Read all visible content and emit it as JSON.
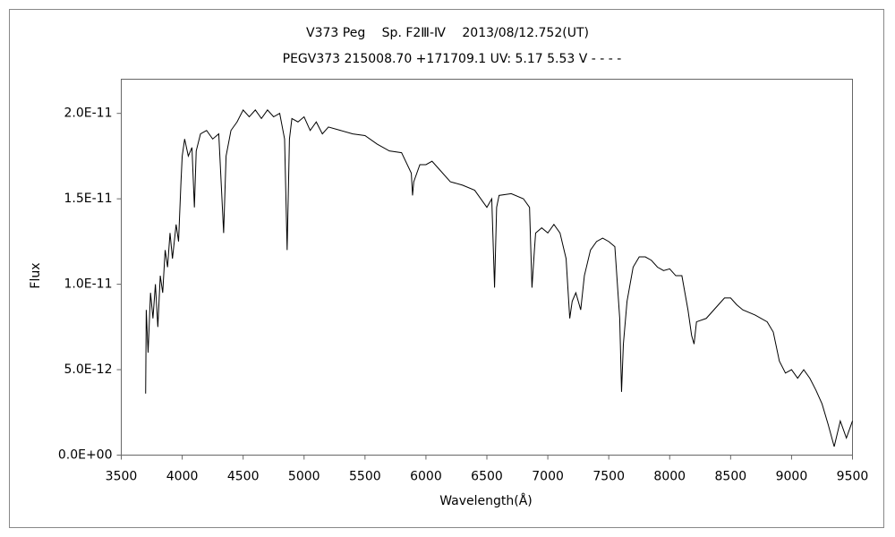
{
  "chart_data": {
    "type": "line",
    "title": "V373 Peg　 Sp. F2Ⅲ-Ⅳ　 2013/08/12.752(UT)",
    "subtitle": "PEGV373 215008.70 +171709.1 UV: 5.17 5.53 V - - - -",
    "x_label": "Wavelength(Å)",
    "y_label": "Flux",
    "color": "#000000",
    "xlim": [
      3500,
      9500
    ],
    "xticks": [
      3500,
      4000,
      4500,
      5000,
      5500,
      6000,
      6500,
      7000,
      7500,
      8000,
      8500,
      9000,
      9500
    ],
    "ylim": [
      0,
      2.2e-11
    ],
    "yticks": [
      {
        "value": 0,
        "label": "0.0E+00"
      },
      {
        "value": 5e-12,
        "label": "5.0E-12"
      },
      {
        "value": 1e-11,
        "label": "1.0E-11"
      },
      {
        "value": 1.5e-11,
        "label": "1.5E-11"
      },
      {
        "value": 2e-11,
        "label": "2.0E-11"
      }
    ],
    "grid": false,
    "x": [
      3700,
      3705,
      3720,
      3740,
      3760,
      3780,
      3800,
      3820,
      3840,
      3860,
      3880,
      3900,
      3920,
      3950,
      3970,
      3990,
      4000,
      4020,
      4050,
      4080,
      4100,
      4115,
      4150,
      4200,
      4250,
      4300,
      4340,
      4360,
      4400,
      4450,
      4500,
      4550,
      4600,
      4650,
      4700,
      4750,
      4800,
      4840,
      4861,
      4880,
      4900,
      4950,
      5000,
      5050,
      5100,
      5150,
      5200,
      5300,
      5400,
      5500,
      5600,
      5700,
      5800,
      5880,
      5890,
      5900,
      5950,
      6000,
      6050,
      6100,
      6200,
      6300,
      6400,
      6500,
      6540,
      6563,
      6580,
      6600,
      6700,
      6800,
      6850,
      6870,
      6890,
      6900,
      6950,
      7000,
      7050,
      7100,
      7150,
      7180,
      7200,
      7230,
      7270,
      7300,
      7350,
      7400,
      7450,
      7500,
      7550,
      7590,
      7605,
      7620,
      7650,
      7700,
      7750,
      7800,
      7850,
      7900,
      7950,
      8000,
      8050,
      8100,
      8150,
      8180,
      8200,
      8220,
      8300,
      8400,
      8450,
      8500,
      8550,
      8600,
      8700,
      8800,
      8850,
      8900,
      8950,
      9000,
      9050,
      9100,
      9150,
      9200,
      9250,
      9300,
      9350,
      9400,
      9450,
      9500
    ],
    "values": [
      3.6e-12,
      8.5e-12,
      6e-12,
      9.5e-12,
      8e-12,
      1e-11,
      7.5e-12,
      1.05e-11,
      9.5e-12,
      1.2e-11,
      1.1e-11,
      1.3e-11,
      1.15e-11,
      1.35e-11,
      1.25e-11,
      1.6e-11,
      1.75e-11,
      1.85e-11,
      1.75e-11,
      1.8e-11,
      1.45e-11,
      1.78e-11,
      1.88e-11,
      1.9e-11,
      1.85e-11,
      1.88e-11,
      1.3e-11,
      1.75e-11,
      1.9e-11,
      1.95e-11,
      2.02e-11,
      1.98e-11,
      2.02e-11,
      1.97e-11,
      2.02e-11,
      1.98e-11,
      2e-11,
      1.85e-11,
      1.2e-11,
      1.85e-11,
      1.97e-11,
      1.95e-11,
      1.98e-11,
      1.9e-11,
      1.95e-11,
      1.88e-11,
      1.92e-11,
      1.9e-11,
      1.88e-11,
      1.87e-11,
      1.82e-11,
      1.78e-11,
      1.77e-11,
      1.65e-11,
      1.52e-11,
      1.6e-11,
      1.7e-11,
      1.7e-11,
      1.72e-11,
      1.68e-11,
      1.6e-11,
      1.58e-11,
      1.55e-11,
      1.45e-11,
      1.5e-11,
      9.8e-12,
      1.45e-11,
      1.52e-11,
      1.53e-11,
      1.5e-11,
      1.45e-11,
      9.8e-12,
      1.2e-11,
      1.3e-11,
      1.33e-11,
      1.3e-11,
      1.35e-11,
      1.3e-11,
      1.15e-11,
      8e-12,
      9e-12,
      9.5e-12,
      8.5e-12,
      1.05e-11,
      1.2e-11,
      1.25e-11,
      1.27e-11,
      1.25e-11,
      1.22e-11,
      8e-12,
      3.7e-12,
      6.5e-12,
      9e-12,
      1.1e-11,
      1.16e-11,
      1.16e-11,
      1.14e-11,
      1.1e-11,
      1.08e-11,
      1.09e-11,
      1.05e-11,
      1.05e-11,
      8.5e-12,
      7e-12,
      6.5e-12,
      7.8e-12,
      8e-12,
      8.8e-12,
      9.2e-12,
      9.2e-12,
      8.8e-12,
      8.5e-12,
      8.2e-12,
      7.8e-12,
      7.2e-12,
      5.5e-12,
      4.8e-12,
      5e-12,
      4.5e-12,
      5e-12,
      4.5e-12,
      3.8e-12,
      3e-12,
      1.8e-12,
      5e-13,
      2e-12,
      1e-12,
      2e-12
    ]
  }
}
